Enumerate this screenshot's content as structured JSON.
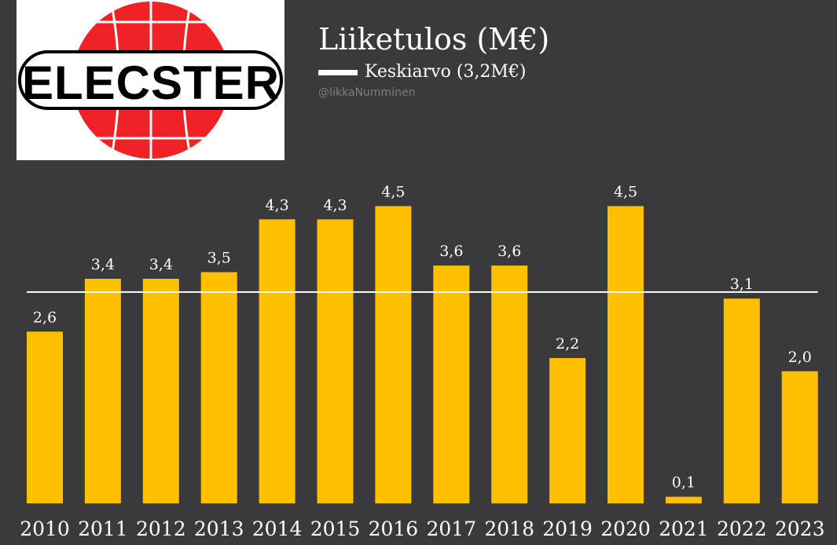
{
  "logo": {
    "text": "ELECSTER",
    "colors": {
      "ball": "#ee2125",
      "frame": "#000000",
      "background": "#ffffff"
    }
  },
  "header": {
    "title": "Liiketulos (M€)",
    "legend_label": "Keskiarvo (3,2M€)",
    "handle": "@IikkaNumminen"
  },
  "colors": {
    "background": "#3a393b",
    "bar": "#fec000",
    "average_line": "#ffffff",
    "text": "#ffffff"
  },
  "chart_data": {
    "type": "bar",
    "title": "Liiketulos (M€)",
    "xlabel": "",
    "ylabel": "",
    "categories": [
      "2010",
      "2011",
      "2012",
      "2013",
      "2014",
      "2015",
      "2016",
      "2017",
      "2018",
      "2019",
      "2020",
      "2021",
      "2022",
      "2023"
    ],
    "values": [
      2.6,
      3.4,
      3.4,
      3.5,
      4.3,
      4.3,
      4.5,
      3.6,
      3.6,
      2.2,
      4.5,
      0.1,
      3.1,
      2.0
    ],
    "value_labels": [
      "2,6",
      "3,4",
      "3,4",
      "3,5",
      "4,3",
      "4,3",
      "4,5",
      "3,6",
      "3,6",
      "2,2",
      "4,5",
      "0,1",
      "3,1",
      "2,0"
    ],
    "reference_line": {
      "name": "Keskiarvo (3,2M€)",
      "value": 3.2
    },
    "ylim": [
      0,
      5.1
    ],
    "grid": false,
    "legend_position": "top"
  }
}
